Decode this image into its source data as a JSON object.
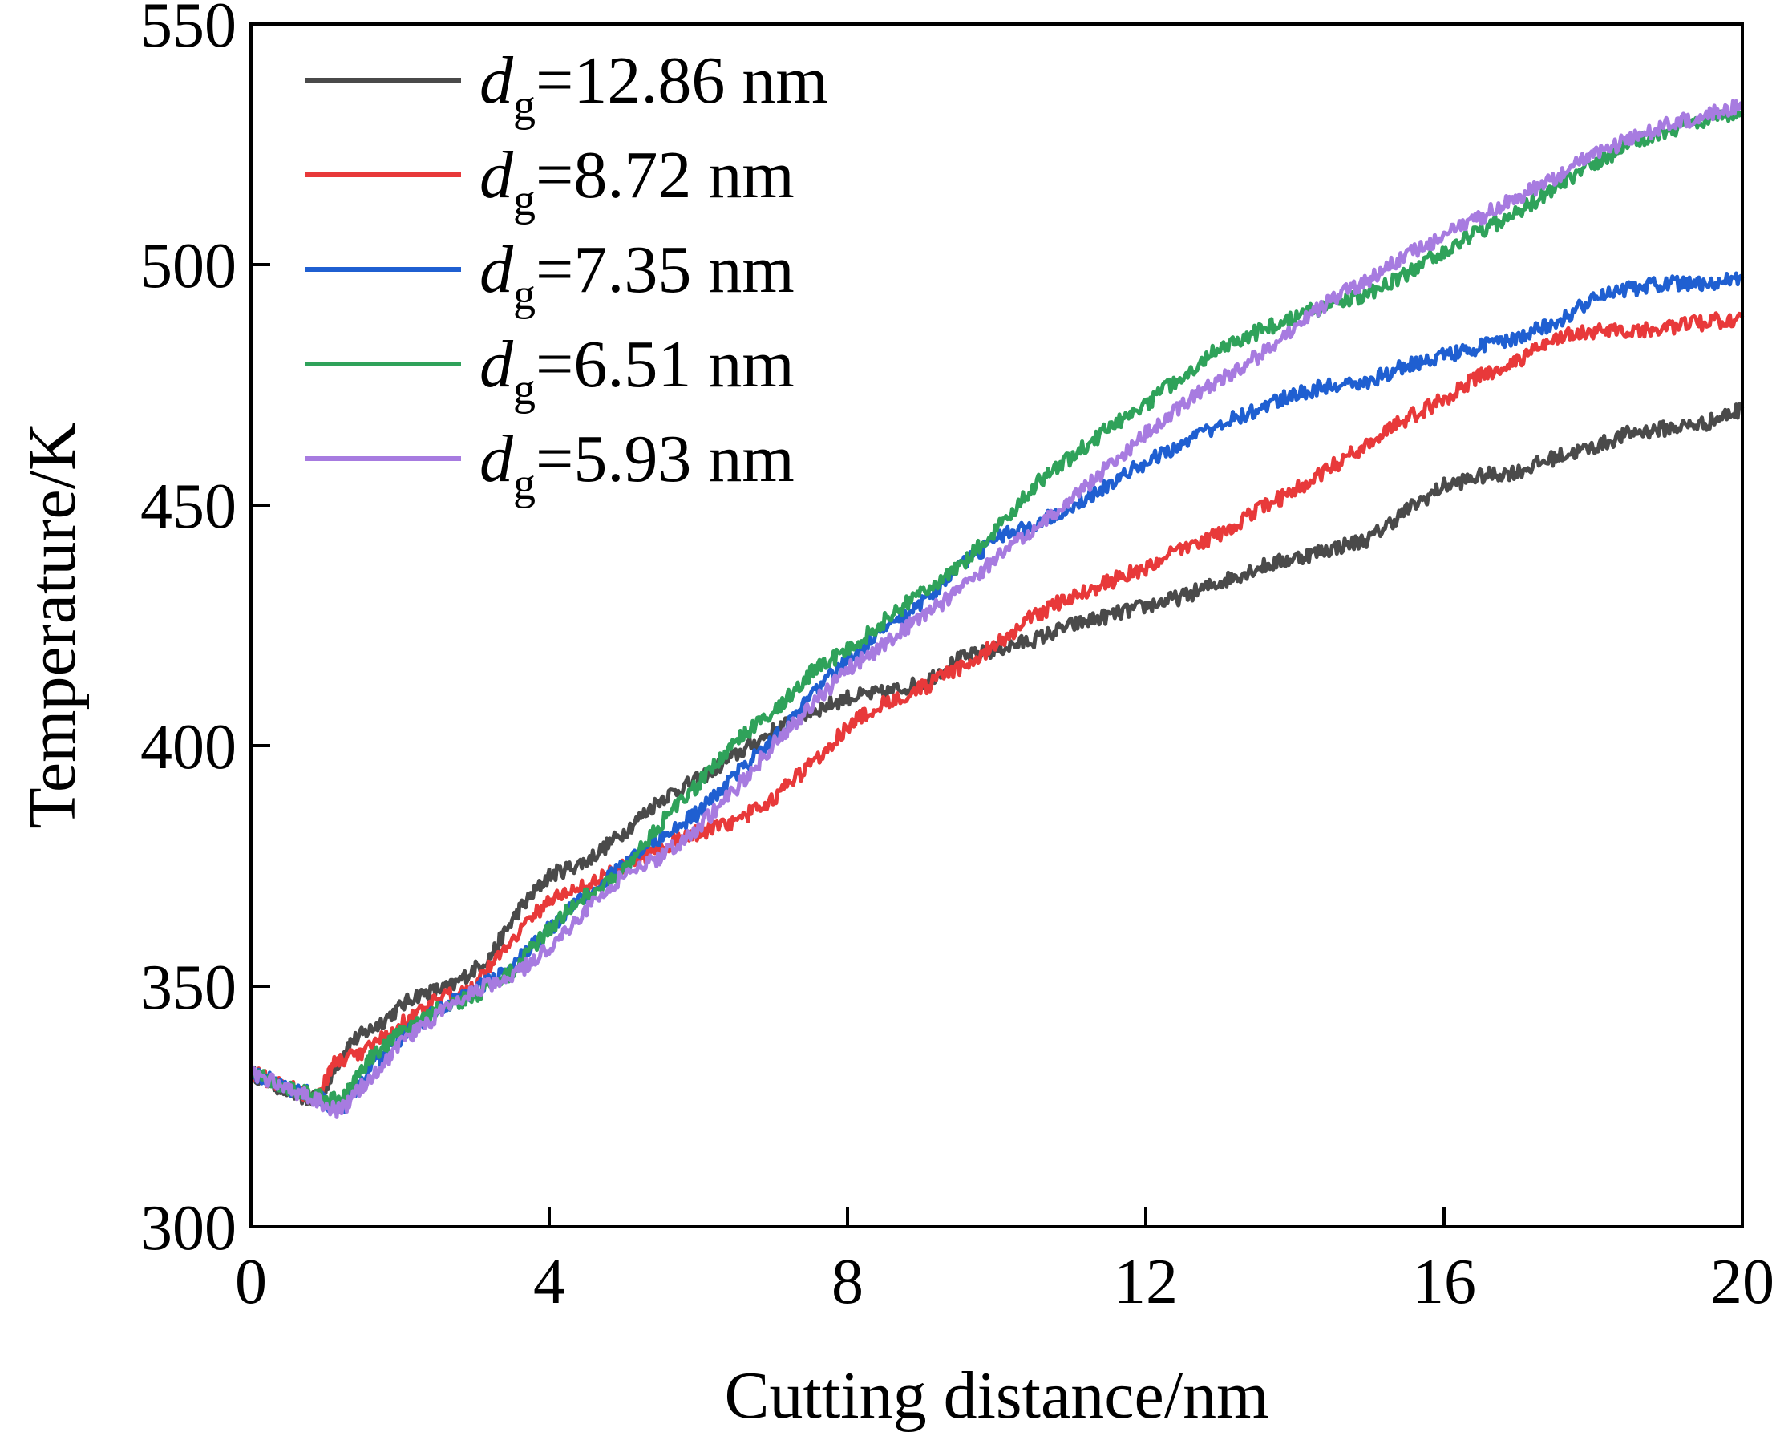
{
  "chart_data": {
    "type": "line",
    "title": "",
    "xlabel": "Cutting distance/nm",
    "ylabel": "Temperature/K",
    "xlim": [
      0,
      20
    ],
    "ylim": [
      300,
      550
    ],
    "xticks": [
      0,
      4,
      8,
      12,
      16,
      20
    ],
    "yticks": [
      300,
      350,
      400,
      450,
      500,
      550
    ],
    "grid": false,
    "legend_position": "top-left",
    "series": [
      {
        "name": "dg=12.86 nm",
        "label_main": "d",
        "label_sub": "g",
        "label_rest": "=12.86 nm",
        "color": "#4a4a4a",
        "x": [
          0,
          0.5,
          0.9,
          1.3,
          1.7,
          2.2,
          2.7,
          3.2,
          3.6,
          4.0,
          4.5,
          5.0,
          5.5,
          6.0,
          6.5,
          7.0,
          7.5,
          8.0,
          8.5,
          9.0,
          9.5,
          10.0,
          10.5,
          11.0,
          11.5,
          12.0,
          12.5,
          13.0,
          13.5,
          14.0,
          14.5,
          15.0,
          15.5,
          16.0,
          16.5,
          17.0,
          17.5,
          18.0,
          18.5,
          19.0,
          19.5,
          20.0
        ],
        "y": [
          332,
          328,
          326,
          338,
          342,
          348,
          350,
          356,
          366,
          373,
          376,
          382,
          389,
          393,
          398,
          403,
          407,
          410,
          411,
          413,
          418,
          420,
          422,
          425,
          427,
          429,
          431,
          434,
          437,
          439,
          441,
          443,
          449,
          454,
          456,
          457,
          460,
          462,
          465,
          466,
          467,
          470
        ]
      },
      {
        "name": "dg=8.72 nm",
        "label_main": "d",
        "label_sub": "g",
        "label_rest": "=8.72 nm",
        "color": "#e8393a",
        "x": [
          0,
          0.5,
          0.9,
          1.1,
          1.5,
          2.0,
          2.5,
          3.0,
          3.5,
          4.0,
          4.5,
          5.0,
          5.5,
          6.0,
          6.5,
          7.0,
          7.5,
          8.0,
          8.5,
          9.0,
          9.5,
          10.0,
          10.5,
          11.0,
          11.5,
          12.0,
          12.5,
          13.0,
          13.5,
          14.0,
          14.5,
          15.0,
          15.5,
          16.0,
          16.5,
          17.0,
          17.5,
          18.0,
          18.5,
          19.0,
          19.5,
          20.0
        ],
        "y": [
          332,
          329,
          327,
          334,
          336,
          342,
          347,
          350,
          360,
          368,
          371,
          375,
          379,
          382,
          384,
          389,
          396,
          404,
          409,
          412,
          416,
          421,
          427,
          431,
          434,
          437,
          441,
          444,
          449,
          453,
          458,
          463,
          468,
          472,
          477,
          480,
          485,
          486,
          486,
          487,
          488,
          489
        ]
      },
      {
        "name": "dg=7.35 nm",
        "label_main": "d",
        "label_sub": "g",
        "label_rest": "=7.35 nm",
        "color": "#1f5fd1",
        "x": [
          0,
          0.5,
          0.9,
          1.2,
          1.6,
          2.0,
          2.5,
          3.0,
          3.5,
          4.0,
          4.5,
          5.0,
          5.5,
          6.0,
          6.5,
          7.0,
          7.5,
          8.0,
          8.5,
          9.0,
          9.5,
          10.0,
          10.5,
          11.0,
          11.5,
          12.0,
          12.5,
          13.0,
          13.5,
          14.0,
          14.5,
          15.0,
          15.5,
          16.0,
          16.5,
          17.0,
          17.5,
          18.0,
          18.5,
          19.0,
          19.5,
          20.0
        ],
        "y": [
          332,
          329,
          327,
          324,
          333,
          339,
          345,
          349,
          354,
          362,
          369,
          375,
          381,
          386,
          394,
          401,
          410,
          418,
          424,
          430,
          437,
          443,
          446,
          450,
          454,
          459,
          463,
          467,
          470,
          473,
          475,
          476,
          479,
          481,
          483,
          485,
          488,
          493,
          495,
          496,
          496,
          497
        ]
      },
      {
        "name": "dg=6.51 nm",
        "label_main": "d",
        "label_sub": "g",
        "label_rest": "=6.51 nm",
        "color": "#2fa25a",
        "x": [
          0,
          0.5,
          0.9,
          1.2,
          1.6,
          2.0,
          2.5,
          3.0,
          3.5,
          4.0,
          4.5,
          5.0,
          5.5,
          6.0,
          6.5,
          7.0,
          7.5,
          8.0,
          8.5,
          9.0,
          9.5,
          10.0,
          10.5,
          11.0,
          11.5,
          12.0,
          12.5,
          13.0,
          13.5,
          14.0,
          14.5,
          15.0,
          15.5,
          16.0,
          16.5,
          17.0,
          17.5,
          18.0,
          18.5,
          19.0,
          19.5,
          20.0
        ],
        "y": [
          332,
          329,
          327,
          326,
          335,
          340,
          345,
          348,
          353,
          362,
          369,
          374,
          384,
          392,
          401,
          407,
          415,
          420,
          426,
          432,
          437,
          445,
          454,
          460,
          466,
          471,
          477,
          483,
          486,
          489,
          492,
          494,
          498,
          503,
          507,
          511,
          516,
          521,
          525,
          528,
          530,
          531
        ]
      },
      {
        "name": "dg=5.93 nm",
        "label_main": "d",
        "label_sub": "g",
        "label_rest": "=5.93 nm",
        "color": "#a77be0",
        "x": [
          0,
          0.5,
          0.9,
          1.2,
          1.6,
          2.0,
          2.5,
          3.0,
          3.5,
          4.0,
          4.5,
          5.0,
          5.5,
          6.0,
          6.5,
          7.0,
          7.5,
          8.0,
          8.5,
          9.0,
          9.5,
          10.0,
          10.5,
          11.0,
          11.5,
          12.0,
          12.5,
          13.0,
          13.5,
          14.0,
          14.5,
          15.0,
          15.5,
          16.0,
          16.5,
          17.0,
          17.5,
          18.0,
          18.5,
          19.0,
          19.5,
          20.0
        ],
        "y": [
          332,
          329,
          326,
          324,
          331,
          338,
          344,
          349,
          352,
          358,
          366,
          373,
          377,
          383,
          391,
          400,
          408,
          416,
          421,
          427,
          432,
          439,
          445,
          451,
          458,
          465,
          471,
          476,
          481,
          487,
          493,
          497,
          502,
          506,
          510,
          514,
          518,
          523,
          526,
          529,
          531,
          533
        ]
      }
    ]
  }
}
